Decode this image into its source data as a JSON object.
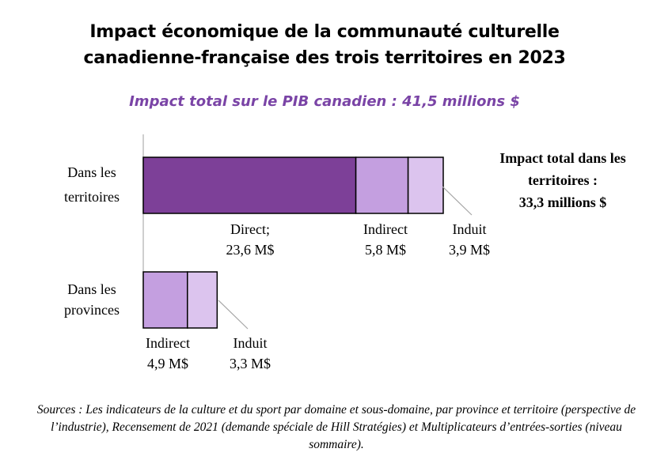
{
  "chart_data": {
    "type": "bar",
    "orientation": "horizontal",
    "stacked": true,
    "title": "Impact économique de la communauté culturelle canadienne-française des trois territoires en 2023",
    "title_lines": [
      "Impact économique de la communauté culturelle",
      "canadienne-française des trois territoires en 2023"
    ],
    "subtitle": "Impact total sur le PIB canadien : 41,5 millions $",
    "total_annotation_lines": [
      "Impact total dans les",
      "territoires :",
      "33,3 millions $"
    ],
    "unit": "M$",
    "categories": [
      {
        "label_lines": [
          "Dans les",
          "territoires"
        ],
        "segments": [
          {
            "name": "Direct",
            "value": 23.6,
            "label_lines": [
              "Direct;",
              "23,6 M$"
            ],
            "color": "#7d4098"
          },
          {
            "name": "Indirect",
            "value": 5.8,
            "label_lines": [
              "Indirect",
              "5,8 M$"
            ],
            "color": "#c49fe0"
          },
          {
            "name": "Induit",
            "value": 3.9,
            "label_lines": [
              "Induit",
              "3,9 M$"
            ],
            "color": "#dcc4ee"
          }
        ]
      },
      {
        "label_lines": [
          "Dans les",
          "provinces"
        ],
        "segments": [
          {
            "name": "Indirect",
            "value": 4.9,
            "label_lines": [
              "Indirect",
              "4,9 M$"
            ],
            "color": "#c49fe0"
          },
          {
            "name": "Induit",
            "value": 3.3,
            "label_lines": [
              "Induit",
              "3,3 M$"
            ],
            "color": "#dcc4ee"
          }
        ]
      }
    ],
    "xlim": [
      0,
      33.3
    ],
    "grid": false,
    "legend": "none"
  },
  "sources": "Sources : Les indicateurs de la culture et du sport par domaine et sous-domaine, par province et territoire (perspective de l’industrie), Recensement de 2021 (demande spéciale de Hill Stratégies) et Multiplicateurs d’entrées-sorties (niveau sommaire).",
  "colors": {
    "axis": "#bfbfbf",
    "leader": "#a6a6a6",
    "subtitle": "#7a44a6"
  }
}
